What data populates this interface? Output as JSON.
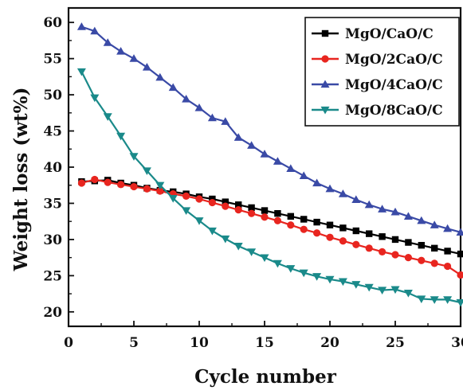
{
  "chart_data": {
    "type": "line",
    "xlabel": "Cycle number",
    "ylabel": "Weight loss (wt%)",
    "xlim": [
      0,
      30
    ],
    "ylim": [
      18,
      62
    ],
    "xticks": [
      0,
      5,
      10,
      15,
      20,
      25,
      30
    ],
    "yticks": [
      20,
      25,
      30,
      35,
      40,
      45,
      50,
      55,
      60
    ],
    "legend_position": "top-right",
    "grid": false,
    "x": [
      1,
      2,
      3,
      4,
      5,
      6,
      7,
      8,
      9,
      10,
      11,
      12,
      13,
      14,
      15,
      16,
      17,
      18,
      19,
      20,
      21,
      22,
      23,
      24,
      25,
      26,
      27,
      28,
      29,
      30
    ],
    "series": [
      {
        "name": "MgO/CaO/C",
        "color": "#000000",
        "marker": "square",
        "values": [
          38.0,
          38.1,
          38.2,
          37.8,
          37.5,
          37.1,
          36.8,
          36.6,
          36.3,
          35.9,
          35.6,
          35.2,
          34.8,
          34.4,
          34.0,
          33.6,
          33.2,
          32.8,
          32.4,
          32.0,
          31.6,
          31.2,
          30.8,
          30.4,
          30.0,
          29.6,
          29.2,
          28.8,
          28.4,
          28.0
        ]
      },
      {
        "name": "MgO/2CaO/C",
        "color": "#e8251f",
        "marker": "circle",
        "values": [
          37.8,
          38.3,
          37.9,
          37.6,
          37.3,
          37.0,
          36.7,
          36.3,
          36.0,
          35.6,
          35.1,
          34.6,
          34.1,
          33.6,
          33.1,
          32.6,
          32.0,
          31.4,
          30.9,
          30.3,
          29.8,
          29.3,
          28.8,
          28.3,
          27.9,
          27.5,
          27.1,
          26.7,
          26.3,
          25.1
        ]
      },
      {
        "name": "MgO/4CaO/C",
        "color": "#3a4aa6",
        "marker": "triangle-up",
        "values": [
          59.4,
          58.8,
          57.2,
          56.0,
          55.0,
          53.8,
          52.4,
          51.0,
          49.4,
          48.2,
          46.8,
          46.3,
          44.1,
          43.0,
          41.8,
          40.8,
          39.8,
          38.8,
          37.8,
          37.0,
          36.3,
          35.5,
          34.8,
          34.2,
          33.8,
          33.2,
          32.6,
          32.0,
          31.5,
          31.0
        ]
      },
      {
        "name": "MgO/8CaO/C",
        "color": "#1a8a8a",
        "marker": "triangle-down",
        "values": [
          53.2,
          49.6,
          47.0,
          44.3,
          41.5,
          39.5,
          37.5,
          35.7,
          34.0,
          32.6,
          31.2,
          30.1,
          29.1,
          28.3,
          27.5,
          26.7,
          26.0,
          25.4,
          24.9,
          24.5,
          24.2,
          23.8,
          23.4,
          23.0,
          23.1,
          22.6,
          21.8,
          21.7,
          21.7,
          21.3
        ]
      }
    ]
  }
}
